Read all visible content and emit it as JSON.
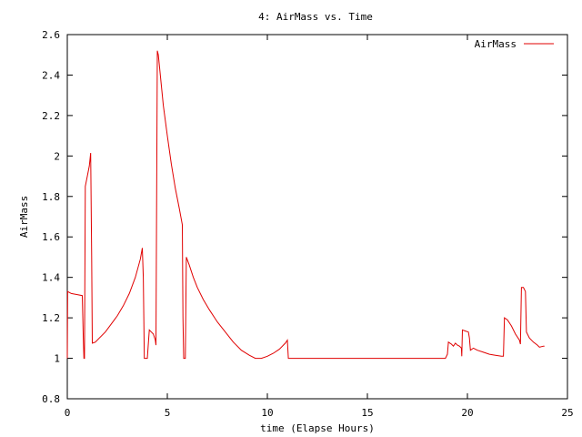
{
  "colors": {
    "series": "#e00000",
    "axis": "#000000",
    "background": "#ffffff"
  },
  "chart_data": {
    "type": "line",
    "title": "4: AirMass vs. Time",
    "xlabel": "time (Elapse Hours)",
    "ylabel": "AirMass",
    "xlim": [
      0,
      25
    ],
    "ylim": [
      0.8,
      2.6
    ],
    "x_ticks": [
      "0",
      "5",
      "10",
      "15",
      "20",
      "25"
    ],
    "y_ticks": [
      "0.8",
      "1",
      "1.2",
      "1.4",
      "1.6",
      "1.8",
      "2",
      "2.2",
      "2.4",
      "2.6"
    ],
    "grid": false,
    "legend_position": "top-right",
    "series": [
      {
        "name": "AirMass",
        "color": "#e00000",
        "points": [
          [
            0.0,
            1.0
          ],
          [
            0.02,
            1.33
          ],
          [
            0.2,
            1.32
          ],
          [
            0.5,
            1.315
          ],
          [
            0.75,
            1.31
          ],
          [
            0.8,
            1.1
          ],
          [
            0.83,
            1.0
          ],
          [
            0.86,
            1.0
          ],
          [
            0.9,
            1.85
          ],
          [
            1.0,
            1.9
          ],
          [
            1.1,
            1.95
          ],
          [
            1.17,
            2.015
          ],
          [
            1.22,
            1.5
          ],
          [
            1.25,
            1.075
          ],
          [
            1.4,
            1.08
          ],
          [
            1.6,
            1.1
          ],
          [
            1.9,
            1.13
          ],
          [
            2.2,
            1.17
          ],
          [
            2.5,
            1.21
          ],
          [
            2.8,
            1.26
          ],
          [
            3.1,
            1.32
          ],
          [
            3.4,
            1.4
          ],
          [
            3.65,
            1.49
          ],
          [
            3.75,
            1.545
          ],
          [
            3.8,
            1.4
          ],
          [
            3.85,
            1.0
          ],
          [
            3.95,
            1.0
          ],
          [
            4.0,
            1.0
          ],
          [
            4.1,
            1.14
          ],
          [
            4.2,
            1.13
          ],
          [
            4.3,
            1.12
          ],
          [
            4.4,
            1.09
          ],
          [
            4.43,
            1.065
          ],
          [
            4.5,
            2.52
          ],
          [
            4.55,
            2.5
          ],
          [
            4.6,
            2.45
          ],
          [
            4.8,
            2.25
          ],
          [
            5.0,
            2.1
          ],
          [
            5.2,
            1.96
          ],
          [
            5.4,
            1.84
          ],
          [
            5.6,
            1.74
          ],
          [
            5.75,
            1.66
          ],
          [
            5.78,
            1.2
          ],
          [
            5.82,
            1.0
          ],
          [
            5.9,
            1.0
          ],
          [
            5.95,
            1.5
          ],
          [
            6.1,
            1.46
          ],
          [
            6.3,
            1.4
          ],
          [
            6.5,
            1.35
          ],
          [
            6.8,
            1.29
          ],
          [
            7.1,
            1.24
          ],
          [
            7.5,
            1.18
          ],
          [
            7.9,
            1.13
          ],
          [
            8.3,
            1.08
          ],
          [
            8.7,
            1.04
          ],
          [
            9.1,
            1.015
          ],
          [
            9.4,
            1.0
          ],
          [
            9.7,
            1.0
          ],
          [
            10.0,
            1.01
          ],
          [
            10.3,
            1.025
          ],
          [
            10.6,
            1.045
          ],
          [
            10.9,
            1.075
          ],
          [
            11.0,
            1.09
          ],
          [
            11.05,
            1.0
          ],
          [
            12.0,
            1.0
          ],
          [
            14.0,
            1.0
          ],
          [
            16.0,
            1.0
          ],
          [
            18.0,
            1.0
          ],
          [
            18.9,
            1.0
          ],
          [
            19.0,
            1.02
          ],
          [
            19.05,
            1.08
          ],
          [
            19.2,
            1.07
          ],
          [
            19.3,
            1.06
          ],
          [
            19.4,
            1.075
          ],
          [
            19.5,
            1.065
          ],
          [
            19.6,
            1.06
          ],
          [
            19.7,
            1.05
          ],
          [
            19.72,
            1.01
          ],
          [
            19.75,
            1.14
          ],
          [
            19.9,
            1.135
          ],
          [
            20.05,
            1.13
          ],
          [
            20.1,
            1.1
          ],
          [
            20.15,
            1.04
          ],
          [
            20.3,
            1.05
          ],
          [
            20.5,
            1.04
          ],
          [
            20.8,
            1.03
          ],
          [
            21.1,
            1.02
          ],
          [
            21.4,
            1.015
          ],
          [
            21.7,
            1.01
          ],
          [
            21.8,
            1.01
          ],
          [
            21.85,
            1.2
          ],
          [
            22.0,
            1.19
          ],
          [
            22.2,
            1.16
          ],
          [
            22.4,
            1.12
          ],
          [
            22.6,
            1.09
          ],
          [
            22.65,
            1.07
          ],
          [
            22.7,
            1.35
          ],
          [
            22.8,
            1.35
          ],
          [
            22.9,
            1.33
          ],
          [
            22.95,
            1.13
          ],
          [
            23.1,
            1.1
          ],
          [
            23.3,
            1.08
          ],
          [
            23.5,
            1.065
          ],
          [
            23.6,
            1.055
          ],
          [
            23.8,
            1.06
          ],
          [
            23.85,
            1.06
          ]
        ]
      }
    ]
  }
}
